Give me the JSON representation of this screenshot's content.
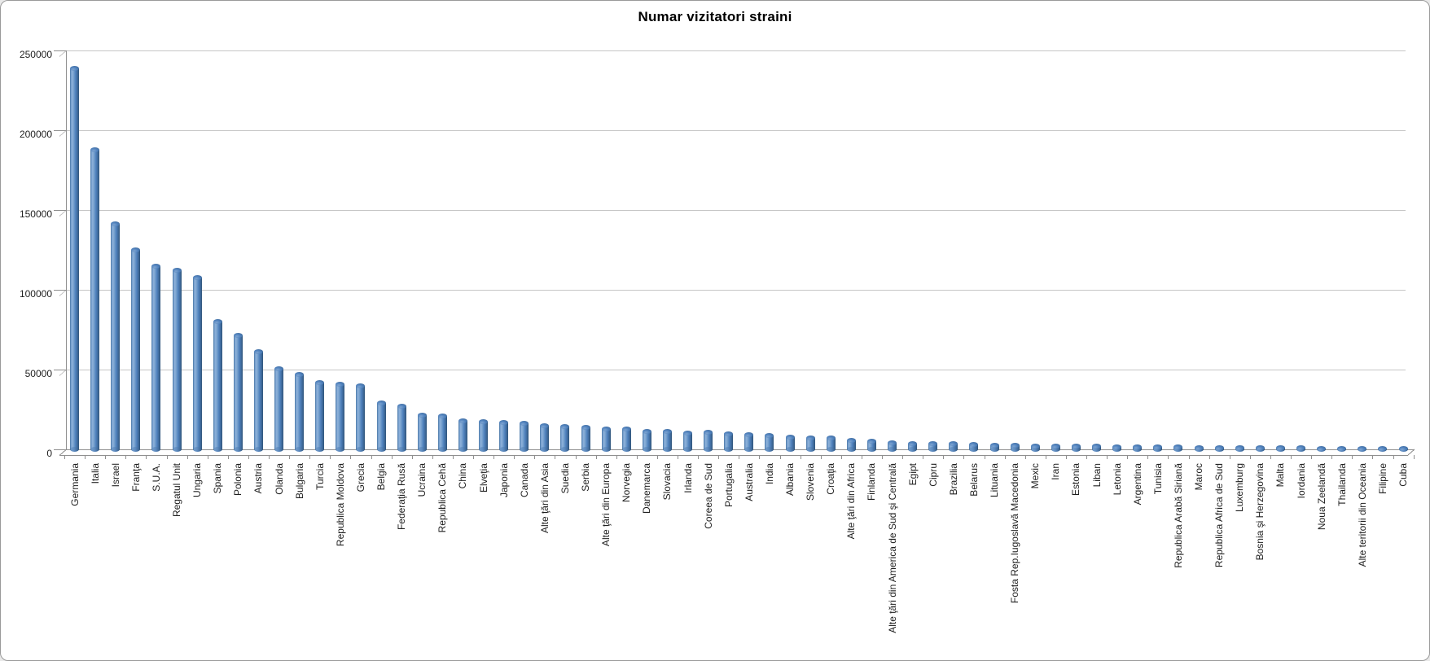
{
  "window": {
    "background_color": "#ffffff",
    "frame_border_color": "#9a9a9a"
  },
  "chart_data": {
    "type": "bar",
    "style": "3d-cylinder",
    "title": "Numar vizitatori straini",
    "xlabel": "",
    "ylabel": "",
    "legend": "none",
    "grid": "horizontal",
    "ylim": [
      0,
      250000
    ],
    "yticks": [
      0,
      50000,
      100000,
      150000,
      200000,
      250000
    ],
    "ytick_labels": [
      "0",
      "50000",
      "100000",
      "150000",
      "200000",
      "250000"
    ],
    "bar_color": "#4f81bd",
    "gridline_color": "#c6c6c6",
    "axis_color": "#8f8f8f",
    "title_color": "#000000",
    "label_color": "#1f1f1f",
    "categories": [
      "Germania",
      "Italia",
      "Israel",
      "Franţa",
      "S.U.A.",
      "Regatul Unit",
      "Ungaria",
      "Spania",
      "Polonia",
      "Austria",
      "Olanda",
      "Bulgaria",
      "Turcia",
      "Republica Moldova",
      "Grecia",
      "Belgia",
      "Federaţia Rusă",
      "Ucraina",
      "Republica Cehă",
      "China",
      "Elveţia",
      "Japonia",
      "Canada",
      "Alte ţări din Asia",
      "Suedia",
      "Serbia",
      "Alte ţări din Europa",
      "Norvegia",
      "Danemarca",
      "Slovacia",
      "Irlanda",
      "Coreea de Sud",
      "Portugalia",
      "Australia",
      "India",
      "Albania",
      "Slovenia",
      "Croaţia",
      "Alte ţări din Africa",
      "Finlanda",
      "Alte ţări din America de Sud şi Centrală",
      "Egipt",
      "Cipru",
      "Brazilia",
      "Belarus",
      "Lituania",
      "Fosta Rep.Iugoslavă Macedonia",
      "Mexic",
      "Iran",
      "Estonia",
      "Liban",
      "Letonia",
      "Argentina",
      "Tunisia",
      "Republica Arabă Siriană",
      "Maroc",
      "Republica Africa de Sud",
      "Luxemburg",
      "Bosnia şi Herzegovina",
      "Malta",
      "Iordania",
      "Noua Zeelandă",
      "Thailanda",
      "Alte teritorii din Oceania",
      "Filipine",
      "Cuba"
    ],
    "values": [
      239000,
      188000,
      141500,
      125000,
      115000,
      112000,
      107500,
      80000,
      71500,
      61000,
      50500,
      47000,
      42000,
      41000,
      40000,
      29000,
      27000,
      21500,
      21000,
      18000,
      17500,
      17000,
      16500,
      15000,
      14200,
      13700,
      12900,
      12600,
      11100,
      11000,
      10400,
      10700,
      9900,
      9000,
      8700,
      7700,
      7200,
      6900,
      5800,
      5000,
      4200,
      3800,
      3600,
      3400,
      2900,
      2600,
      2400,
      2200,
      2100,
      1900,
      1800,
      1700,
      1500,
      1400,
      1350,
      1250,
      1150,
      1050,
      1000,
      900,
      850,
      750,
      650,
      550,
      450,
      350
    ]
  }
}
